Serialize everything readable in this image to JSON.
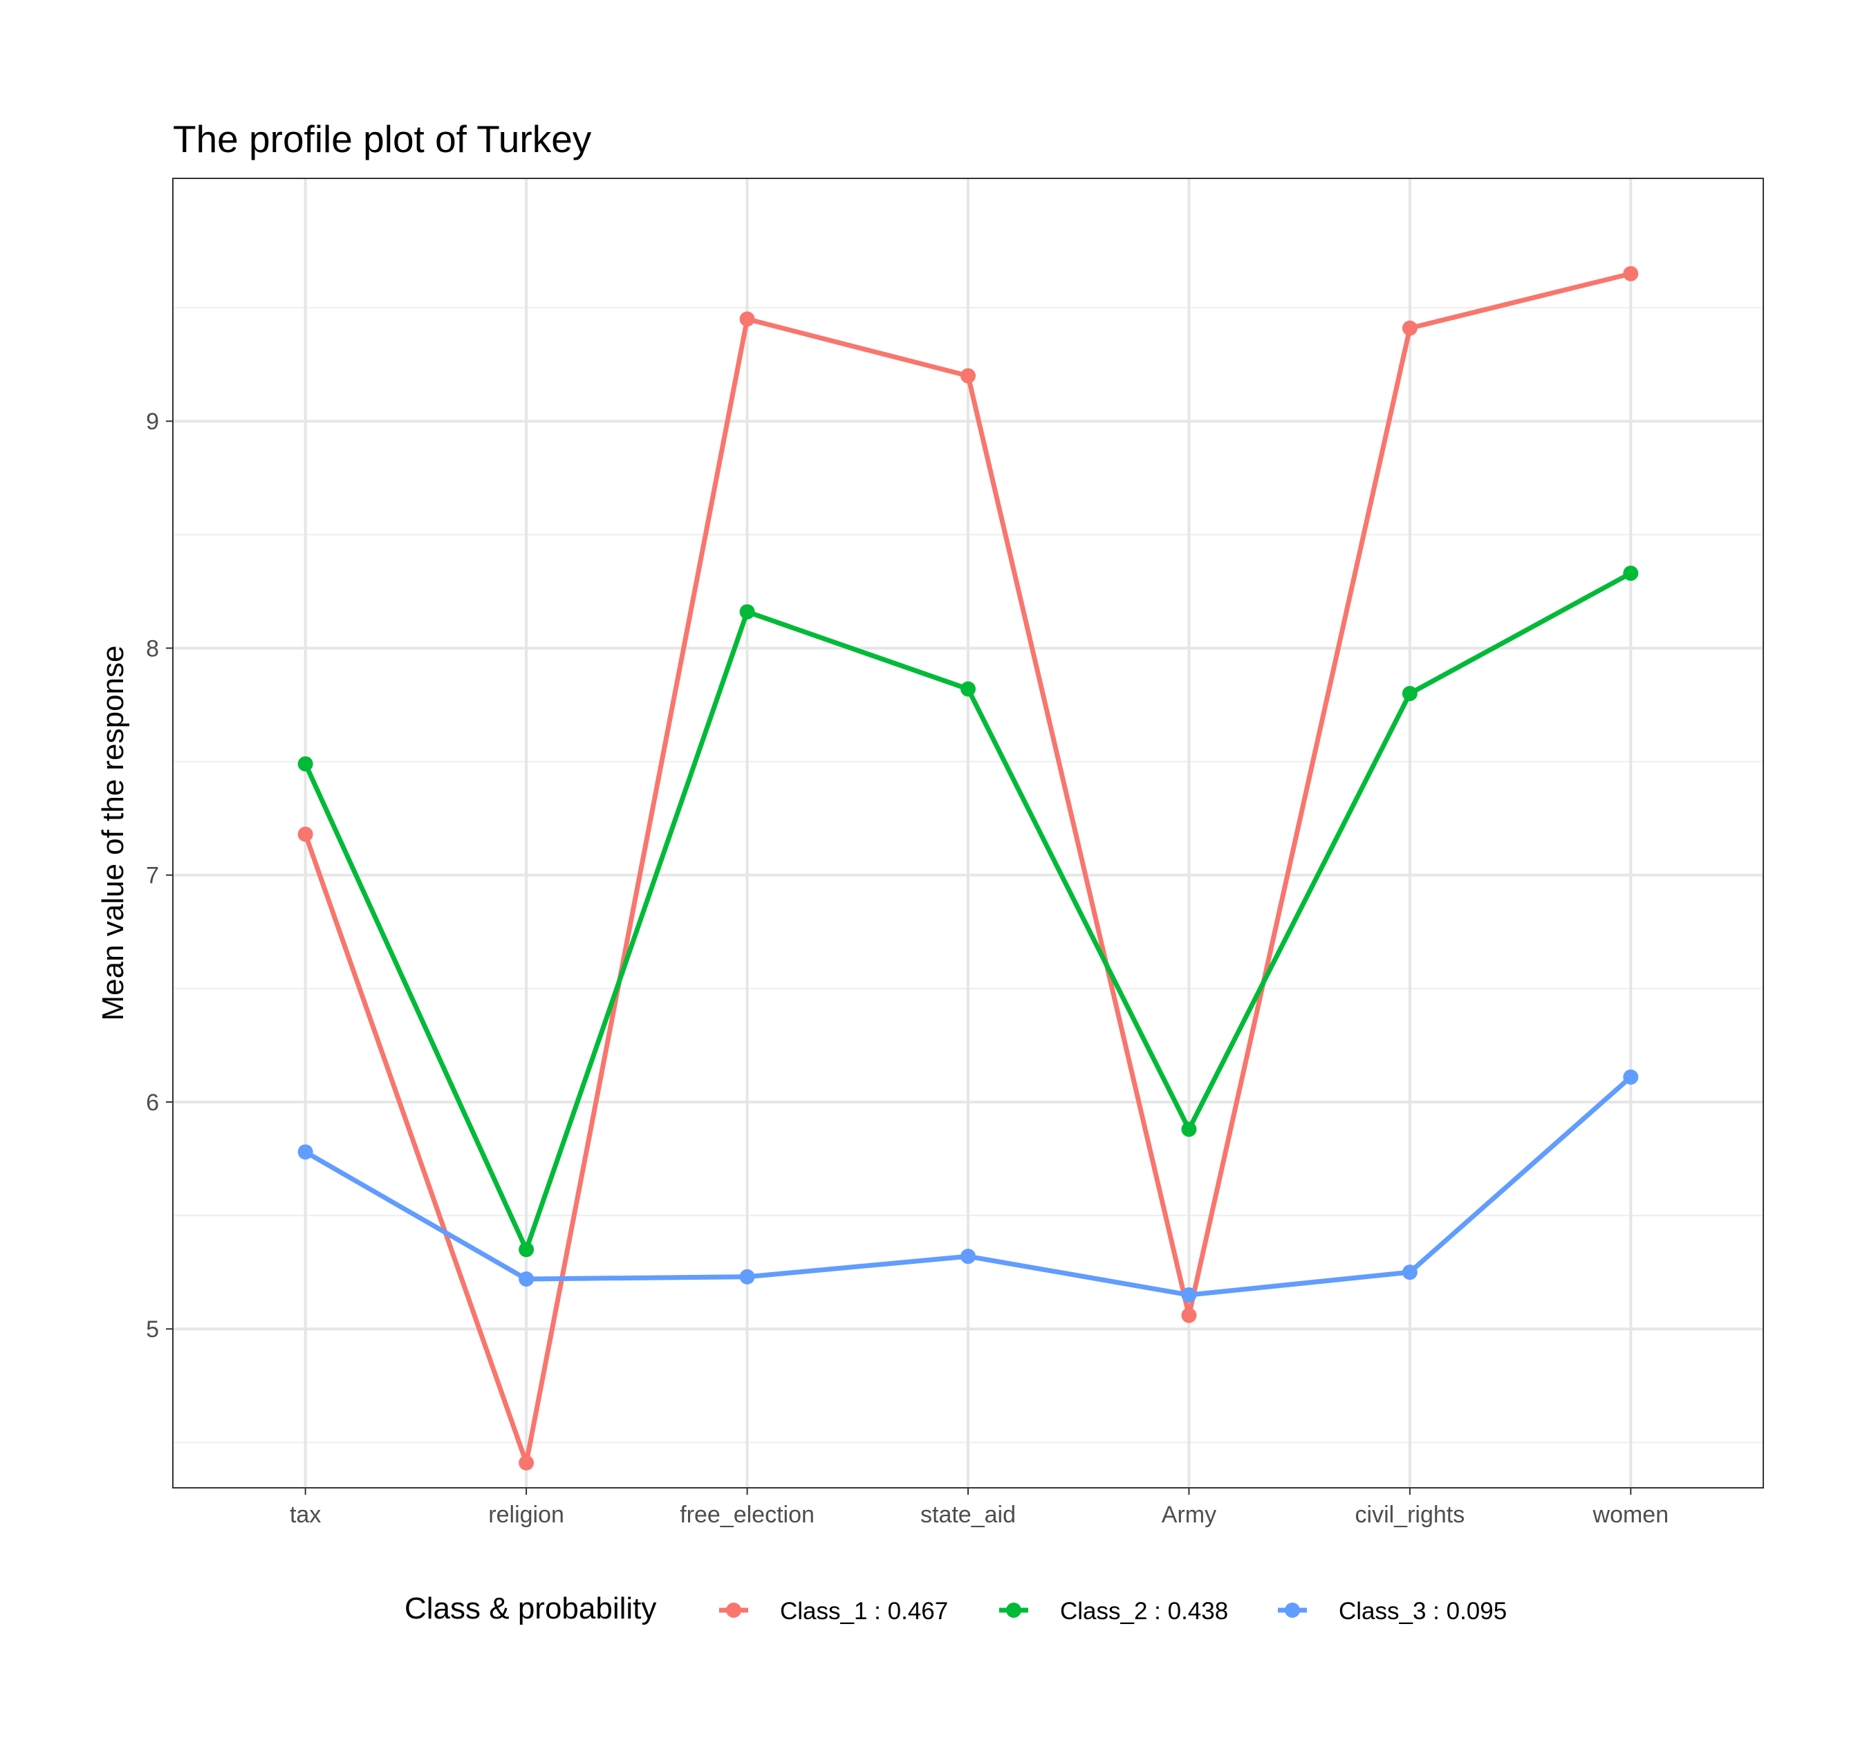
{
  "chart_data": {
    "type": "line",
    "title": "The profile plot of Turkey",
    "xlabel": "",
    "ylabel": "Mean value of the response",
    "categories": [
      "tax",
      "religion",
      "free_election",
      "state_aid",
      "Army",
      "civil_rights",
      "women"
    ],
    "ylim": [
      4.3,
      10.07
    ],
    "yticks": [
      5,
      6,
      7,
      8,
      9
    ],
    "grid": true,
    "legend": {
      "title": "Class & probability",
      "position": "bottom"
    },
    "series": [
      {
        "name": "Class_1 : 0.467",
        "color": "#F8766D",
        "values": [
          7.18,
          4.41,
          9.45,
          9.2,
          5.06,
          9.41,
          9.65
        ]
      },
      {
        "name": "Class_2 : 0.438",
        "color": "#00BA38",
        "values": [
          7.49,
          5.35,
          8.16,
          7.82,
          5.88,
          7.8,
          8.33
        ]
      },
      {
        "name": "Class_3 : 0.095",
        "color": "#619CFF",
        "values": [
          5.78,
          5.22,
          5.23,
          5.32,
          5.15,
          5.25,
          6.11
        ]
      }
    ]
  }
}
